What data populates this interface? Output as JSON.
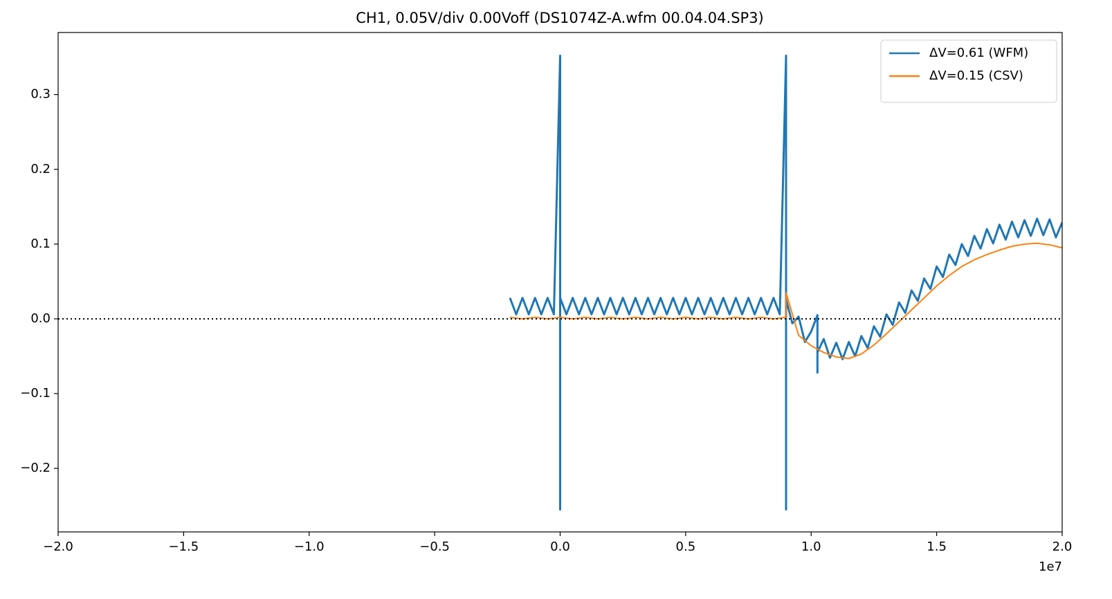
{
  "chart_data": {
    "type": "line",
    "title": "CH1, 0.05V/div 0.00Voff (DS1074Z-A.wfm 00.04.04.SP3)",
    "x_offset_label": "1e7",
    "xlim": [
      -20000000,
      20000000
    ],
    "xticks": [
      {
        "value": -20000000,
        "label": "−2.0"
      },
      {
        "value": -15000000,
        "label": "−1.5"
      },
      {
        "value": -10000000,
        "label": "−1.0"
      },
      {
        "value": -5000000,
        "label": "−0.5"
      },
      {
        "value": 0,
        "label": "0.0"
      },
      {
        "value": 5000000,
        "label": "0.5"
      },
      {
        "value": 10000000,
        "label": "1.0"
      },
      {
        "value": 15000000,
        "label": "1.5"
      },
      {
        "value": 20000000,
        "label": "2.0"
      }
    ],
    "ylim": [
      -0.285,
      0.383
    ],
    "yticks": [
      {
        "value": -0.2,
        "label": "−0.2"
      },
      {
        "value": -0.1,
        "label": "−0.1"
      },
      {
        "value": 0,
        "label": "0.0"
      },
      0.1,
      0.2,
      0.3
    ],
    "hline": {
      "y": 0,
      "style": "dotted",
      "color": "#000000"
    },
    "legend": "upper right",
    "series": [
      {
        "name": "ΔV=0.61 (WFM)",
        "color": "#1f77b4",
        "x": [
          -2000000,
          -1750000,
          -1500000,
          -1250000,
          -1000000,
          -750000,
          -500000,
          -250000,
          0,
          0,
          0,
          250000,
          500000,
          750000,
          1000000,
          1250000,
          1500000,
          1750000,
          2000000,
          2250000,
          2500000,
          2750000,
          3000000,
          3250000,
          3500000,
          3750000,
          4000000,
          4250000,
          4500000,
          4750000,
          5000000,
          5250000,
          5500000,
          5750000,
          6000000,
          6250000,
          6500000,
          6750000,
          7000000,
          7250000,
          7500000,
          7750000,
          8000000,
          8250000,
          8500000,
          8750000,
          9000000,
          9000000,
          9000000,
          9250000,
          9500000,
          9750000,
          10000000,
          10250000,
          10250000,
          10250000,
          10500000,
          10750000,
          11000000,
          11250000,
          11500000,
          11750000,
          12000000,
          12250000,
          12500000,
          12750000,
          13000000,
          13250000,
          13500000,
          13750000,
          14000000,
          14250000,
          14500000,
          14750000,
          15000000,
          15250000,
          15500000,
          15750000,
          16000000,
          16250000,
          16500000,
          16750000,
          17000000,
          17250000,
          17500000,
          17750000,
          18000000,
          18250000,
          18500000,
          18750000,
          19000000,
          19250000,
          19500000,
          19750000,
          20000000
        ],
        "values": [
          0.028,
          0.006,
          0.028,
          0.006,
          0.028,
          0.006,
          0.028,
          0.006,
          0.352,
          -0.255,
          0.028,
          0.006,
          0.028,
          0.006,
          0.028,
          0.006,
          0.028,
          0.006,
          0.028,
          0.006,
          0.028,
          0.006,
          0.028,
          0.006,
          0.028,
          0.006,
          0.028,
          0.006,
          0.028,
          0.006,
          0.028,
          0.006,
          0.028,
          0.006,
          0.028,
          0.006,
          0.028,
          0.006,
          0.028,
          0.006,
          0.028,
          0.006,
          0.028,
          0.006,
          0.028,
          0.006,
          0.352,
          -0.255,
          0.026,
          -0.006,
          0.003,
          -0.031,
          -0.017,
          0.005,
          -0.072,
          -0.045,
          -0.027,
          -0.052,
          -0.032,
          -0.054,
          -0.031,
          -0.05,
          -0.023,
          -0.039,
          -0.01,
          -0.024,
          0.006,
          -0.008,
          0.022,
          0.008,
          0.038,
          0.024,
          0.054,
          0.04,
          0.07,
          0.056,
          0.086,
          0.072,
          0.1,
          0.084,
          0.111,
          0.094,
          0.12,
          0.101,
          0.126,
          0.106,
          0.13,
          0.109,
          0.132,
          0.111,
          0.134,
          0.112,
          0.133,
          0.109,
          0.129
        ]
      },
      {
        "name": "ΔV=0.15 (CSV)",
        "color": "#ff7f0e",
        "x": [
          -2000000,
          -1500000,
          -1000000,
          -500000,
          0,
          500000,
          1000000,
          1500000,
          2000000,
          2500000,
          3000000,
          3500000,
          4000000,
          4500000,
          5000000,
          5500000,
          6000000,
          6500000,
          7000000,
          7500000,
          8000000,
          8500000,
          9000000,
          9000000,
          9500000,
          10000000,
          10500000,
          11000000,
          11500000,
          12000000,
          12500000,
          13000000,
          13500000,
          14000000,
          14500000,
          15000000,
          15500000,
          16000000,
          16500000,
          17000000,
          17500000,
          18000000,
          18500000,
          19000000,
          19500000,
          20000000
        ],
        "values": [
          0.002,
          0.0,
          0.002,
          0.0,
          0.002,
          0.0,
          0.002,
          0.0,
          0.002,
          0.0,
          0.002,
          0.0,
          0.002,
          0.0,
          0.002,
          0.0,
          0.002,
          0.0,
          0.002,
          0.0,
          0.002,
          0.0,
          0.002,
          0.035,
          -0.022,
          -0.036,
          -0.045,
          -0.051,
          -0.053,
          -0.047,
          -0.035,
          -0.02,
          -0.004,
          0.012,
          0.028,
          0.044,
          0.058,
          0.07,
          0.079,
          0.086,
          0.092,
          0.097,
          0.1,
          0.101,
          0.099,
          0.095
        ]
      }
    ]
  }
}
